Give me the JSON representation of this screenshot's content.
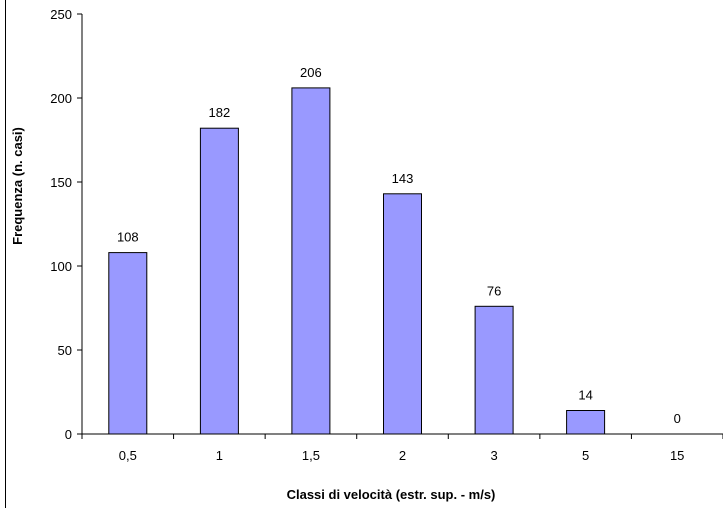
{
  "chart_data": {
    "type": "bar",
    "categories": [
      "0,5",
      "1",
      "1,5",
      "2",
      "3",
      "5",
      "15"
    ],
    "values": [
      108,
      182,
      206,
      143,
      76,
      14,
      0
    ],
    "data_labels": [
      "108",
      "182",
      "206",
      "143",
      "76",
      "14",
      "0"
    ],
    "xlabel": "Classi di velocità (estr. sup. - m/s)",
    "ylabel": "Frequenza (n. casi)",
    "ylim": [
      0,
      250
    ],
    "yticks": [
      "0",
      "50",
      "100",
      "150",
      "200",
      "250"
    ],
    "grid": false,
    "legend": "none",
    "colors": {
      "bar_fill": "#9999ff",
      "bar_stroke": "#000000",
      "axis": "#000000"
    }
  }
}
